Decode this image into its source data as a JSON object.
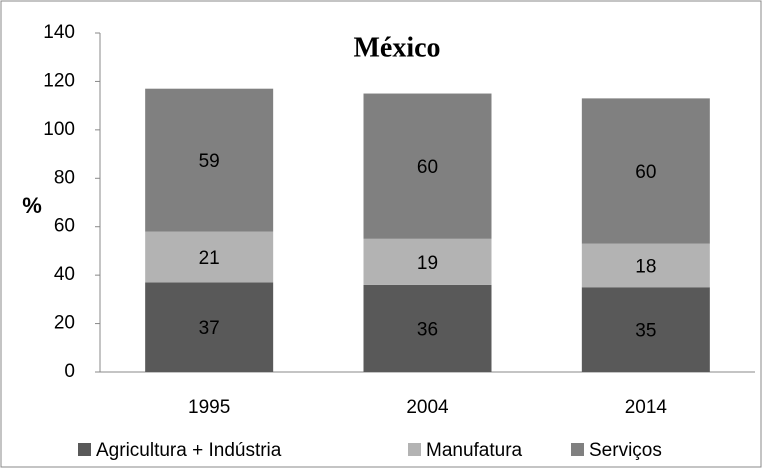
{
  "chart_data": {
    "type": "stacked_bar",
    "title": "México",
    "y_label": "%",
    "categories": [
      "1995",
      "2004",
      "2014"
    ],
    "series": [
      {
        "name": "Agricultura + Indústria",
        "color": "#595959",
        "values": [
          37,
          36,
          35
        ]
      },
      {
        "name": "Manufatura",
        "color": "#b3b3b3",
        "values": [
          21,
          19,
          18
        ]
      },
      {
        "name": "Serviços",
        "color": "#808080",
        "values": [
          59,
          60,
          60
        ]
      }
    ],
    "ylim": [
      0,
      140
    ],
    "yticks": [
      0,
      20,
      40,
      60,
      80,
      100,
      120,
      140
    ],
    "grid": false,
    "legend": "bottom"
  }
}
